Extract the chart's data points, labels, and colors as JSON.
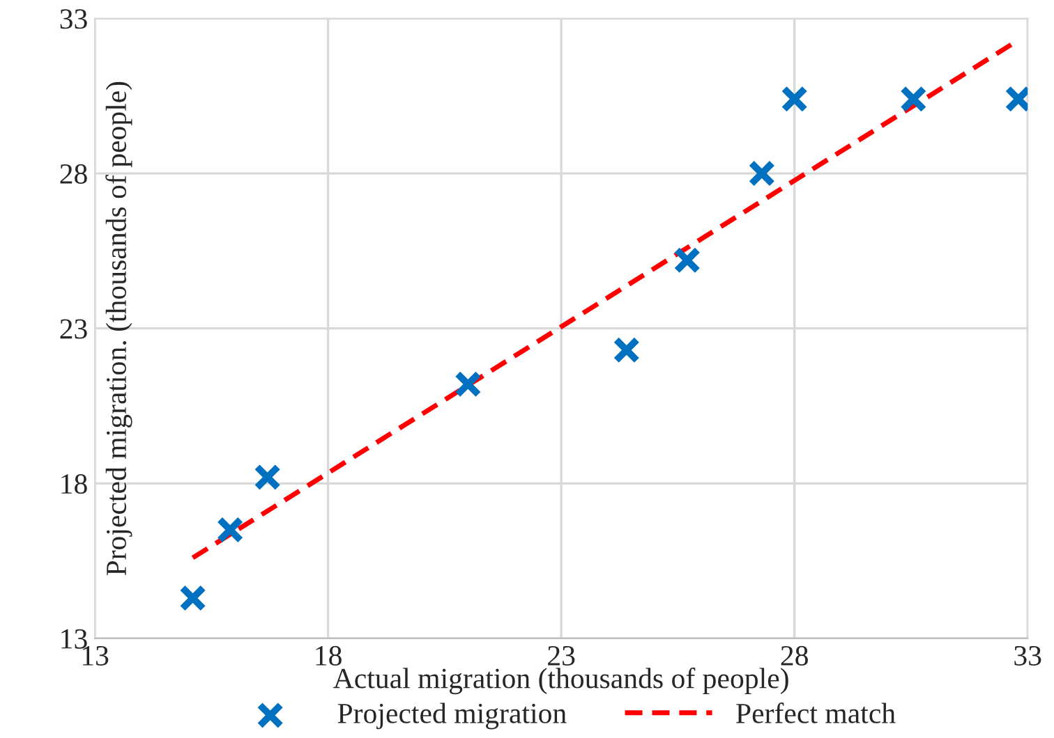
{
  "chart_data": {
    "type": "scatter",
    "xlabel": "Actual migration (thousands of people)",
    "ylabel": "Projected migration. (thousands of people)",
    "xlim": [
      13,
      33
    ],
    "xticks": [
      13,
      18,
      23,
      28,
      33
    ],
    "ylim": [
      13,
      33
    ],
    "yticks": [
      13,
      18,
      23,
      28,
      33
    ],
    "grid": true,
    "legend": "bottom",
    "series": [
      {
        "name": "Projected migration",
        "marker": "cross",
        "color": "#0070c0",
        "x": [
          15.1,
          15.9,
          16.7,
          21.0,
          24.4,
          25.7,
          27.3,
          28.0,
          30.55,
          32.8
        ],
        "values": [
          14.3,
          16.5,
          18.2,
          21.2,
          22.3,
          25.2,
          28.0,
          30.4,
          30.4,
          30.4
        ]
      },
      {
        "name": "Perfect match",
        "type": "line",
        "line_style": "dashed",
        "color": "#ff0000",
        "x": [
          15.1,
          32.8
        ],
        "values": [
          15.6,
          32.3
        ]
      }
    ]
  }
}
